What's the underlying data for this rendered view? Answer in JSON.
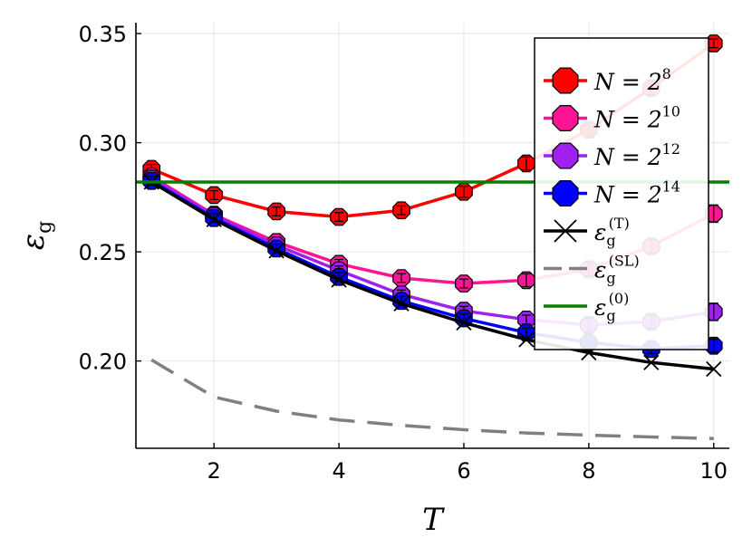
{
  "chart_data": {
    "type": "line",
    "xlabel": "T",
    "ylabel": "εg",
    "xlim": [
      0.75,
      10.25
    ],
    "ylim": [
      0.16,
      0.355
    ],
    "xticks": [
      2,
      4,
      6,
      8,
      10
    ],
    "yticks": [
      0.2,
      0.25,
      0.3,
      0.35
    ],
    "ytick_labels": [
      "0.20",
      "0.25",
      "0.30",
      "0.35"
    ],
    "grid": true,
    "legend_position": "top-right",
    "x": [
      1,
      2,
      3,
      4,
      5,
      6,
      7,
      8,
      9,
      10
    ],
    "series": [
      {
        "name": "N = 2^8",
        "label_base": "N = 2",
        "label_sup": "8",
        "color": "#ff0000",
        "marker": "octagon",
        "values": [
          0.288,
          0.276,
          0.2685,
          0.266,
          0.269,
          0.2775,
          0.2905,
          0.306,
          0.325,
          0.3455
        ],
        "errors": [
          0.002,
          0.002,
          0.002,
          0.002,
          0.002,
          0.0025,
          0.003,
          0.003,
          0.003,
          0.002
        ]
      },
      {
        "name": "N = 2^10",
        "label_base": "N = 2",
        "label_sup": "10",
        "color": "#ff1493",
        "marker": "octagon",
        "values": [
          0.2845,
          0.267,
          0.2545,
          0.2445,
          0.238,
          0.2355,
          0.237,
          0.242,
          0.2525,
          0.2675
        ],
        "errors": [
          0.002,
          0.002,
          0.002,
          0.002,
          0.002,
          0.002,
          0.003,
          0.003,
          0.003,
          0.004
        ]
      },
      {
        "name": "N = 2^12",
        "label_base": "N = 2",
        "label_sup": "12",
        "color": "#a020f0",
        "marker": "octagon",
        "values": [
          0.2835,
          0.2665,
          0.253,
          0.2415,
          0.2305,
          0.223,
          0.219,
          0.2165,
          0.218,
          0.2225
        ],
        "errors": [
          0.002,
          0.002,
          0.002,
          0.002,
          0.002,
          0.002,
          0.002,
          0.003,
          0.003,
          0.004
        ]
      },
      {
        "name": "N = 2^14",
        "label_base": "N = 2",
        "label_sup": "14",
        "color": "#0000ff",
        "marker": "octagon",
        "values": [
          0.2825,
          0.2655,
          0.2515,
          0.2385,
          0.2275,
          0.2195,
          0.213,
          0.2085,
          0.2055,
          0.207
        ],
        "errors": [
          0.002,
          0.002,
          0.002,
          0.002,
          0.002,
          0.002,
          0.002,
          0.002,
          0.002,
          0.003
        ]
      },
      {
        "name": "εg(T)",
        "label_base": "ε",
        "label_sub": "g",
        "label_sup": "(T)",
        "color": "#000000",
        "marker": "cross",
        "values": [
          0.282,
          0.2648,
          0.2505,
          0.2372,
          0.2263,
          0.2175,
          0.2098,
          0.2038,
          0.1993,
          0.1963
        ]
      },
      {
        "name": "εg(SL)",
        "label_base": "ε",
        "label_sub": "g",
        "label_sup": "(SL)",
        "color": "#808080",
        "marker": "none",
        "dashed": true,
        "values": [
          0.2005,
          0.1835,
          0.177,
          0.173,
          0.1705,
          0.1685,
          0.167,
          0.166,
          0.1652,
          0.1645
        ]
      },
      {
        "name": "εg(0)",
        "label_base": "ε",
        "label_sub": "g",
        "label_sup": "(0)",
        "color": "#008000",
        "marker": "none",
        "constant": 0.282
      }
    ]
  }
}
